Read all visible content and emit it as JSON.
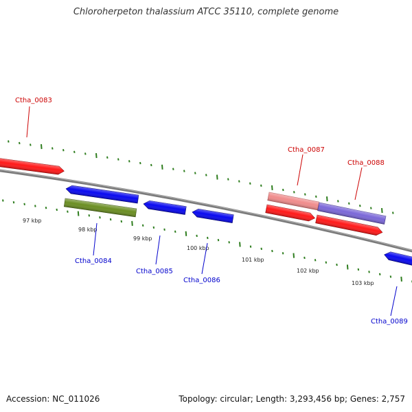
{
  "title": "Chloroherpeton thalassium ATCC 35110, complete genome",
  "footer": {
    "accession": "Accession: NC_011026",
    "summary": "Topology: circular; Length: 3,293,456 bp; Genes: 2,757"
  },
  "axis": {
    "tick_labels": [
      "97 kbp",
      "98 kbp",
      "99 kbp",
      "100 kbp",
      "101 kbp",
      "102 kbp",
      "103 kbp"
    ]
  },
  "colors": {
    "backbone": "#7a7a7a",
    "tick": "#2e7d1e",
    "forward_label": "#cc0000",
    "reverse_label": "#0000cc"
  },
  "genes": [
    {
      "id": "Ctha_0083",
      "strand": "+",
      "color": "#ff1a1a",
      "label_color": "#cc0000",
      "icon": "forward-arrow-icon"
    },
    {
      "id": "Ctha_0084",
      "strand": "-",
      "color": "#0a0af0",
      "label_color": "#0000cc",
      "icon": "reverse-arrow-icon"
    },
    {
      "id": "Ctha_0084b",
      "strand": "-",
      "color": "#6b8e23",
      "label_color": "#0000cc",
      "icon": "reverse-bar-icon"
    },
    {
      "id": "Ctha_0085",
      "strand": "-",
      "color": "#0a0af0",
      "label_color": "#0000cc",
      "icon": "reverse-arrow-icon"
    },
    {
      "id": "Ctha_0086",
      "strand": "-",
      "color": "#0a0af0",
      "label_color": "#0000cc",
      "icon": "reverse-arrow-icon"
    },
    {
      "id": "Ctha_0087",
      "strand": "+",
      "color": "#f08c8c",
      "label_color": "#cc0000",
      "icon": "forward-bar-icon"
    },
    {
      "id": "Ctha_0087b",
      "strand": "+",
      "color": "#ff1a1a",
      "label_color": "#cc0000",
      "icon": "forward-arrow-icon"
    },
    {
      "id": "Ctha_0088",
      "strand": "+",
      "color": "#7b68d8",
      "label_color": "#cc0000",
      "icon": "forward-bar-icon"
    },
    {
      "id": "Ctha_0088b",
      "strand": "+",
      "color": "#ff1a1a",
      "label_color": "#cc0000",
      "icon": "forward-arrow-icon"
    },
    {
      "id": "Ctha_0089",
      "strand": "-",
      "color": "#0a0af0",
      "label_color": "#0000cc",
      "icon": "reverse-arrow-icon"
    }
  ],
  "labels": [
    {
      "text": "Ctha_0083",
      "color": "#cc0000"
    },
    {
      "text": "Ctha_0084",
      "color": "#0000cc"
    },
    {
      "text": "Ctha_0085",
      "color": "#0000cc"
    },
    {
      "text": "Ctha_0086",
      "color": "#0000cc"
    },
    {
      "text": "Ctha_0087",
      "color": "#cc0000"
    },
    {
      "text": "Ctha_0088",
      "color": "#cc0000"
    },
    {
      "text": "Ctha_0089",
      "color": "#0000cc"
    }
  ]
}
